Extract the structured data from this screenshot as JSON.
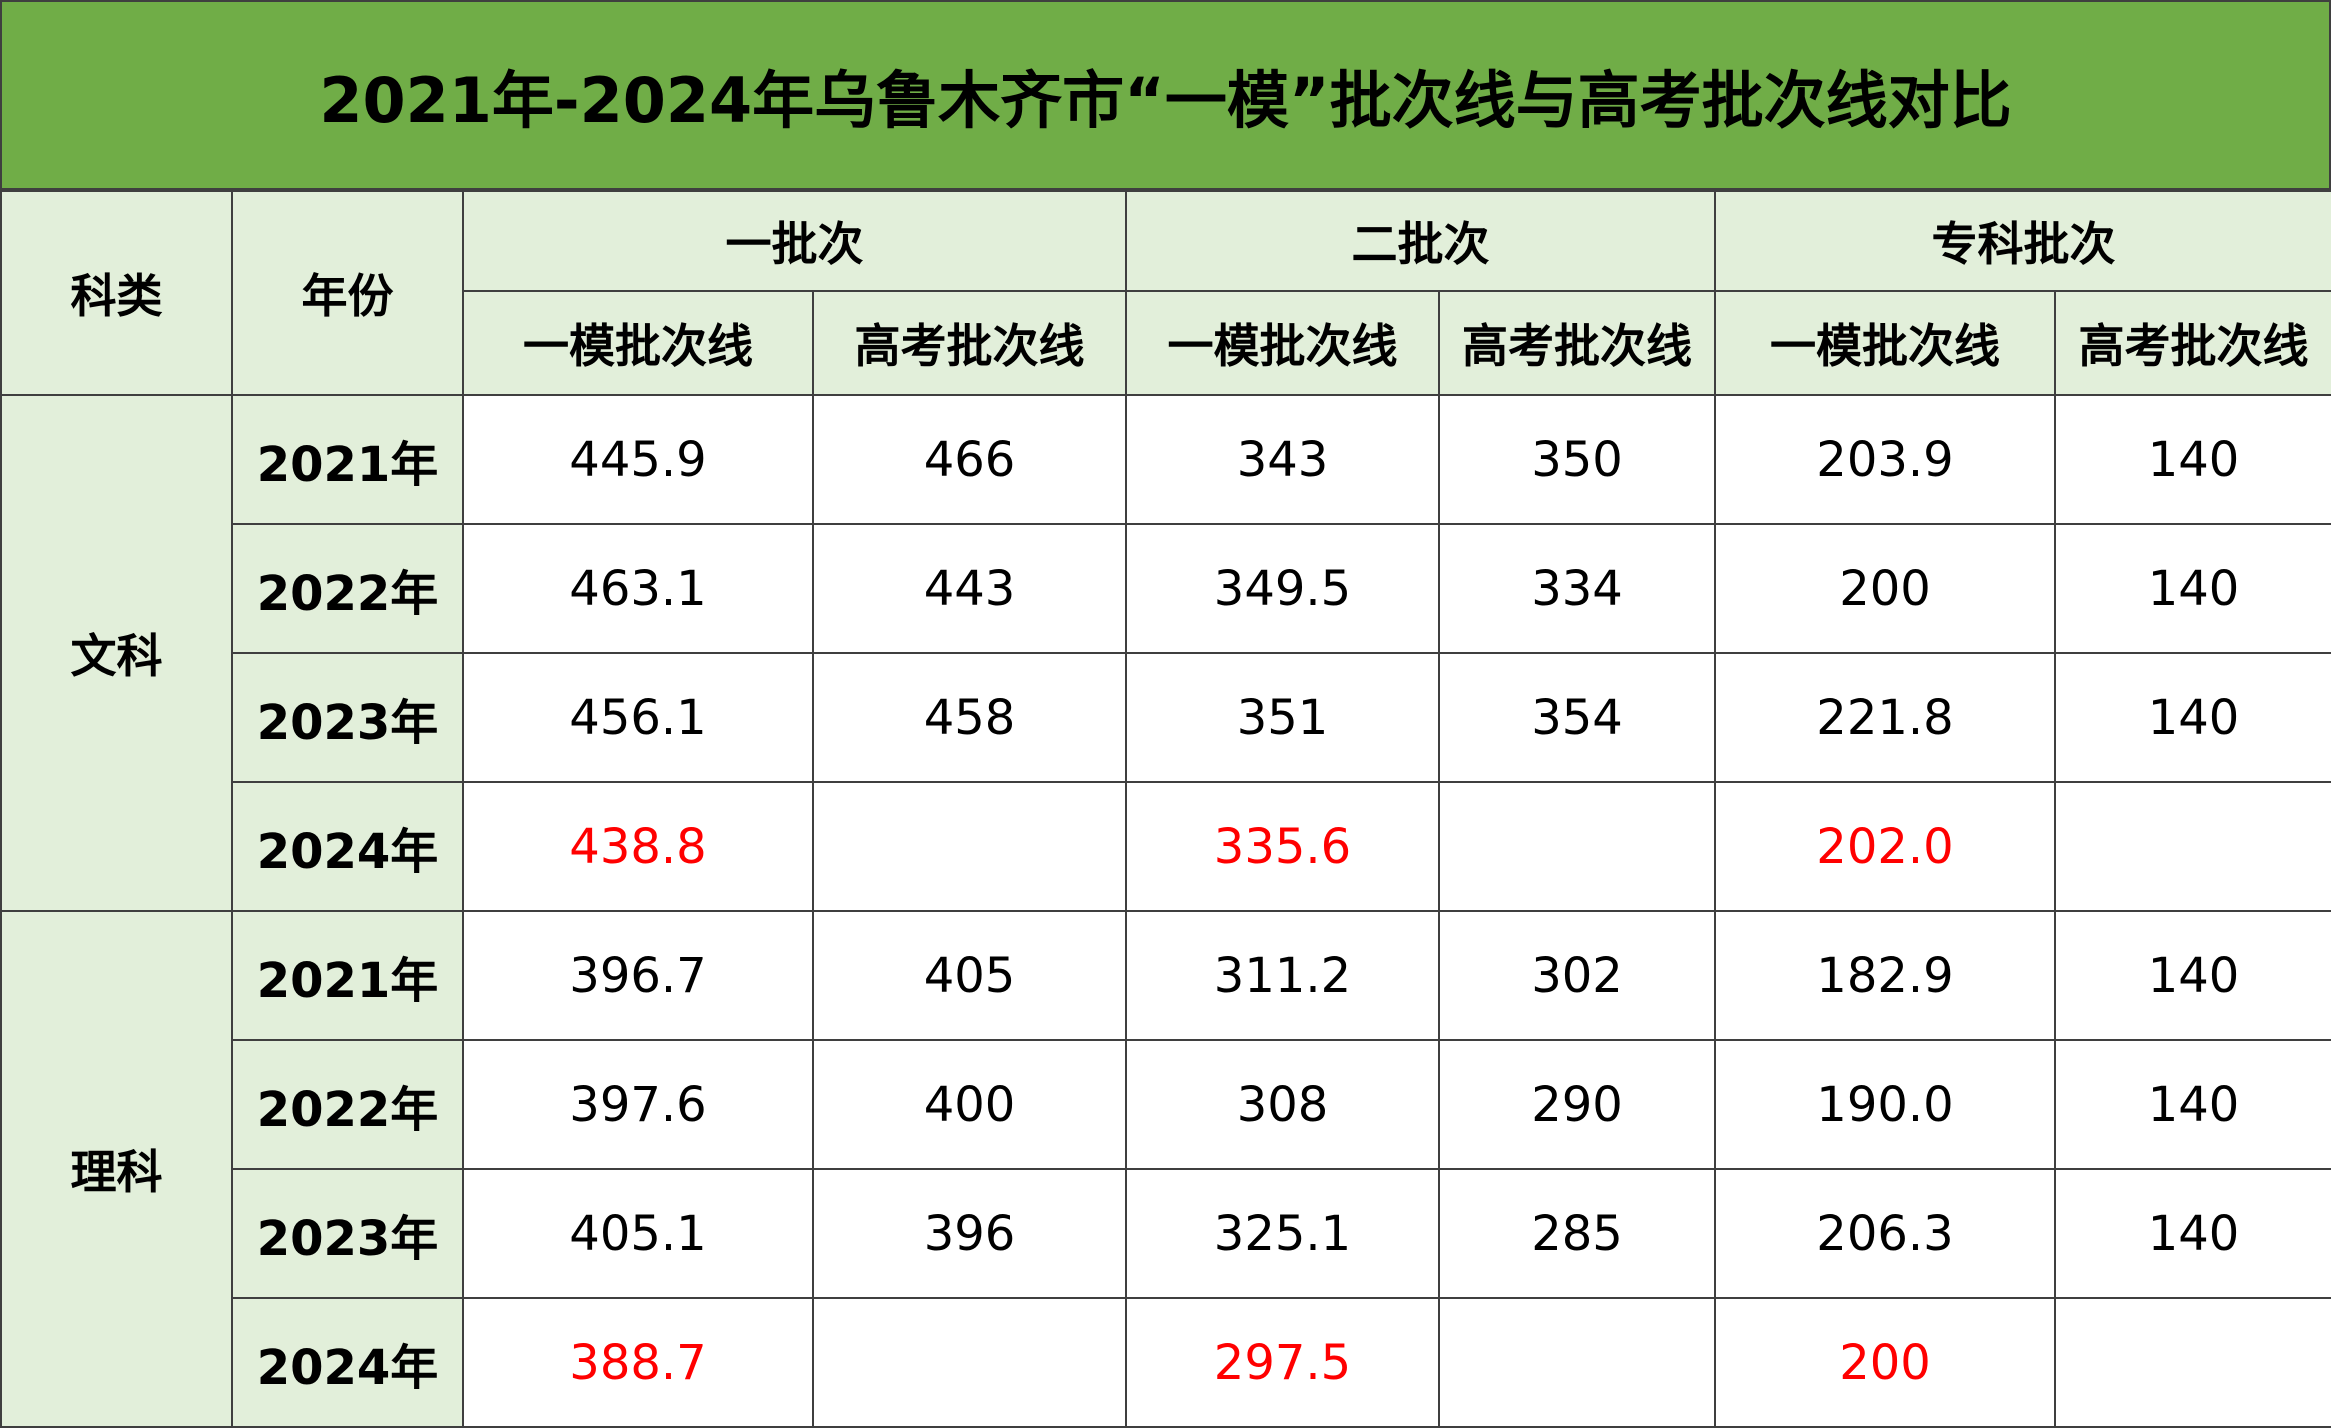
{
  "title": "2021年-2024年乌鲁木齐市“一模”批次线与高考批次线对比",
  "colors": {
    "title_bg": "#70ad47",
    "header_bg": "#e2efda",
    "highlight_text": "#ff0000",
    "border": "#3f3f3f"
  },
  "chart_data": {
    "type": "table",
    "title": "2021年-2024年乌鲁木齐市“一模”批次线与高考批次线对比",
    "header": {
      "subject_label": "科类",
      "year_label": "年份",
      "groups": [
        "一批次",
        "二批次",
        "专科批次"
      ],
      "sub_cols": [
        "一模批次线",
        "高考批次线",
        "一模批次线",
        "高考批次线",
        "一模批次线",
        "高考批次线"
      ]
    },
    "sections": [
      {
        "subject": "文科",
        "rows": [
          {
            "year": "2021年",
            "values": [
              "445.9",
              "466",
              "343",
              "350",
              "203.9",
              "140"
            ],
            "highlight": false
          },
          {
            "year": "2022年",
            "values": [
              "463.1",
              "443",
              "349.5",
              "334",
              "200",
              "140"
            ],
            "highlight": false
          },
          {
            "year": "2023年",
            "values": [
              "456.1",
              "458",
              "351",
              "354",
              "221.8",
              "140"
            ],
            "highlight": false
          },
          {
            "year": "2024年",
            "values": [
              "438.8",
              "",
              "335.6",
              "",
              "202.0",
              ""
            ],
            "highlight": true
          }
        ]
      },
      {
        "subject": "理科",
        "rows": [
          {
            "year": "2021年",
            "values": [
              "396.7",
              "405",
              "311.2",
              "302",
              "182.9",
              "140"
            ],
            "highlight": false
          },
          {
            "year": "2022年",
            "values": [
              "397.6",
              "400",
              "308",
              "290",
              "190.0",
              "140"
            ],
            "highlight": false
          },
          {
            "year": "2023年",
            "values": [
              "405.1",
              "396",
              "325.1",
              "285",
              "206.3",
              "140"
            ],
            "highlight": false
          },
          {
            "year": "2024年",
            "values": [
              "388.7",
              "",
              "297.5",
              "",
              "200",
              ""
            ],
            "highlight": true
          }
        ]
      }
    ]
  }
}
